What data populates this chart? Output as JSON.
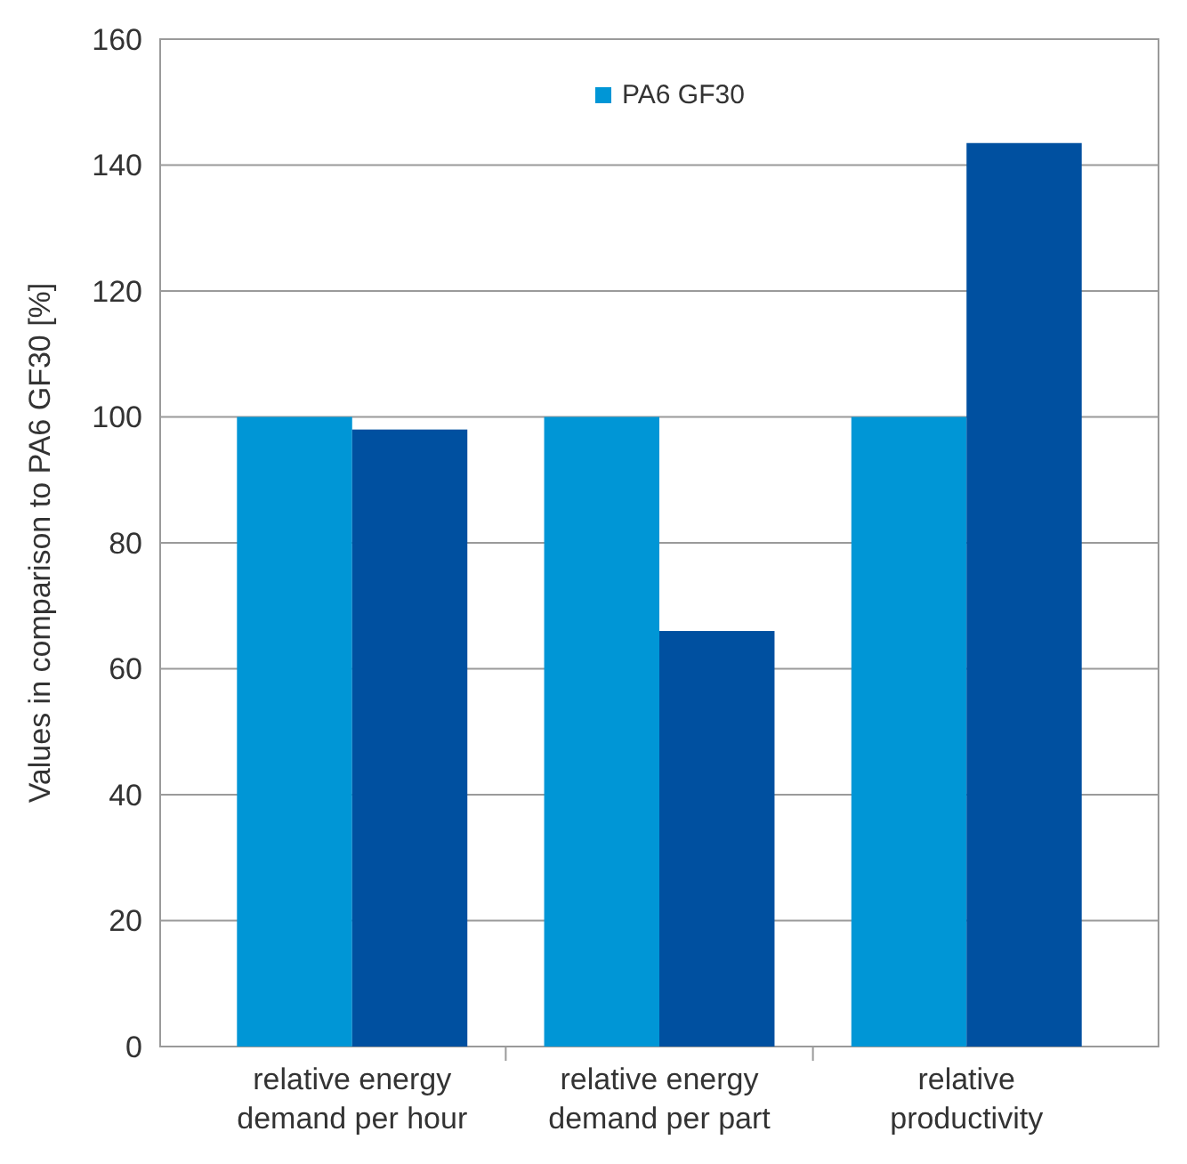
{
  "chart_data": {
    "type": "bar",
    "ylabel": "Values in comparison to PA6 GF30 [%]",
    "categories": [
      "relative energy demand per hour",
      "relative energy demand per part",
      "relative productivity"
    ],
    "series": [
      {
        "name": "PA6 GF30",
        "color": "#0096d6",
        "values": [
          100,
          100,
          100
        ]
      },
      {
        "color": "#0050a0",
        "values": [
          98,
          66,
          143.5
        ]
      }
    ],
    "ylim": [
      0,
      160
    ],
    "yticks": [
      0,
      20,
      40,
      60,
      80,
      100,
      120,
      140,
      160
    ],
    "grid": "y",
    "legend": "top"
  }
}
